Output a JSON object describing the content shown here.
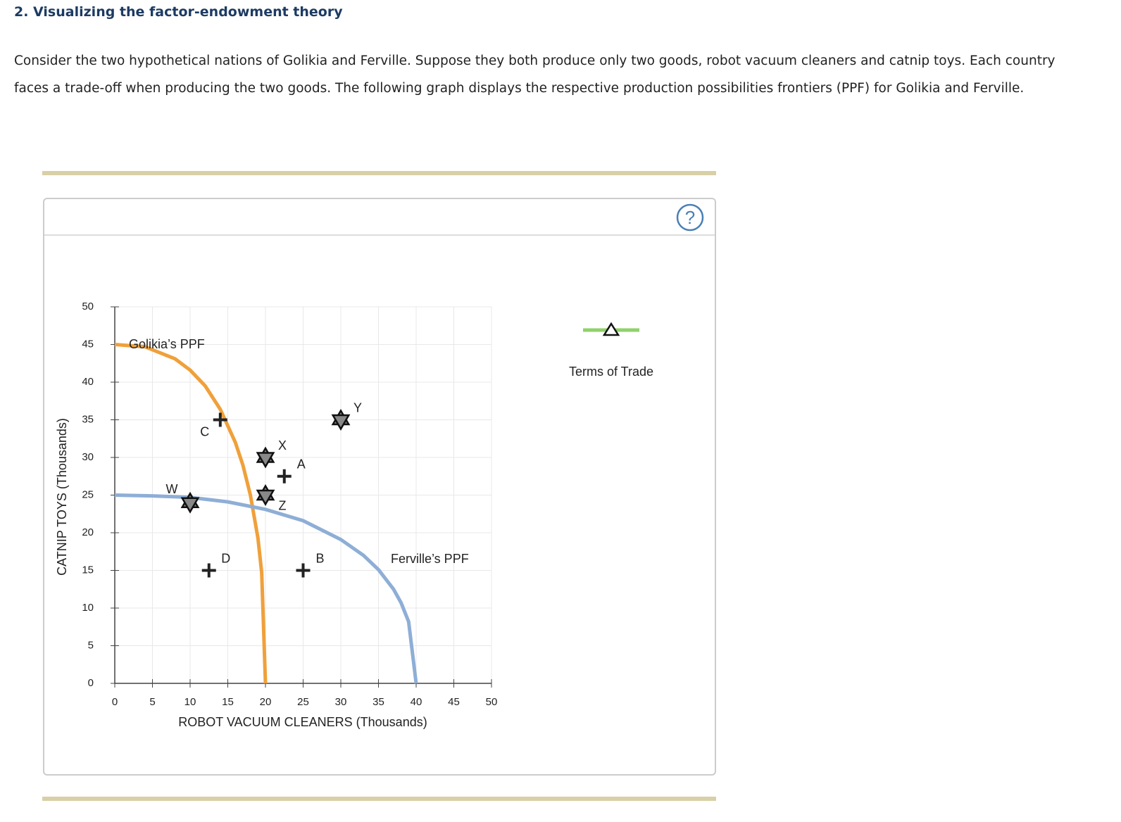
{
  "header": {
    "title": "2. Visualizing the factor-endowment theory"
  },
  "paragraph": "Consider the two hypothetical nations of Golikia and Ferville. Suppose they both produce only two goods, robot vacuum cleaners and catnip toys. Each country faces a trade-off when producing the two goods. The following graph displays the respective production possibilities frontiers (PPF) for Golikia and Ferville.",
  "help": "?",
  "chart_data": {
    "type": "line",
    "xlabel": "ROBOT VACUUM CLEANERS (Thousands)",
    "ylabel": "CATNIP TOYS (Thousands)",
    "xlim": [
      0,
      50
    ],
    "ylim": [
      0,
      50
    ],
    "xticks": [
      0,
      5,
      10,
      15,
      20,
      25,
      30,
      35,
      40,
      45,
      50
    ],
    "yticks": [
      0,
      5,
      10,
      15,
      20,
      25,
      30,
      35,
      40,
      45,
      50
    ],
    "grid": true,
    "series": [
      {
        "name": "Golikia’s PPF",
        "color": "#f0a03a",
        "x": [
          0,
          4,
          8,
          10,
          12,
          14,
          16,
          17,
          18,
          19,
          19.5,
          20
        ],
        "values": [
          45,
          44.7,
          43.1,
          41.6,
          39.5,
          36.4,
          32.0,
          29.0,
          25.0,
          19.3,
          14.7,
          0
        ]
      },
      {
        "name": "Ferville’s PPF",
        "color": "#8eaed6",
        "x": [
          0,
          5,
          10,
          15,
          20,
          25,
          30,
          33,
          35,
          37,
          38,
          39,
          40
        ],
        "values": [
          25,
          24.9,
          24.7,
          24.1,
          23.1,
          21.6,
          19.1,
          17.0,
          15.1,
          12.5,
          10.7,
          8.2,
          0
        ]
      }
    ],
    "points": [
      {
        "label": "C",
        "shape": "plus",
        "x": 14,
        "y": 35
      },
      {
        "label": "X",
        "shape": "star",
        "x": 20,
        "y": 30
      },
      {
        "label": "A",
        "shape": "plus",
        "x": 22.5,
        "y": 27.5
      },
      {
        "label": "Y",
        "shape": "star",
        "x": 30,
        "y": 35
      },
      {
        "label": "W",
        "shape": "star",
        "x": 10,
        "y": 24
      },
      {
        "label": "Z",
        "shape": "star",
        "x": 20,
        "y": 25
      },
      {
        "label": "D",
        "shape": "plus",
        "x": 12.5,
        "y": 15
      },
      {
        "label": "B",
        "shape": "plus",
        "x": 25,
        "y": 15
      }
    ],
    "legend": [
      {
        "name": "Terms of Trade",
        "color": "#8fd16a",
        "marker": "triangle"
      }
    ]
  }
}
